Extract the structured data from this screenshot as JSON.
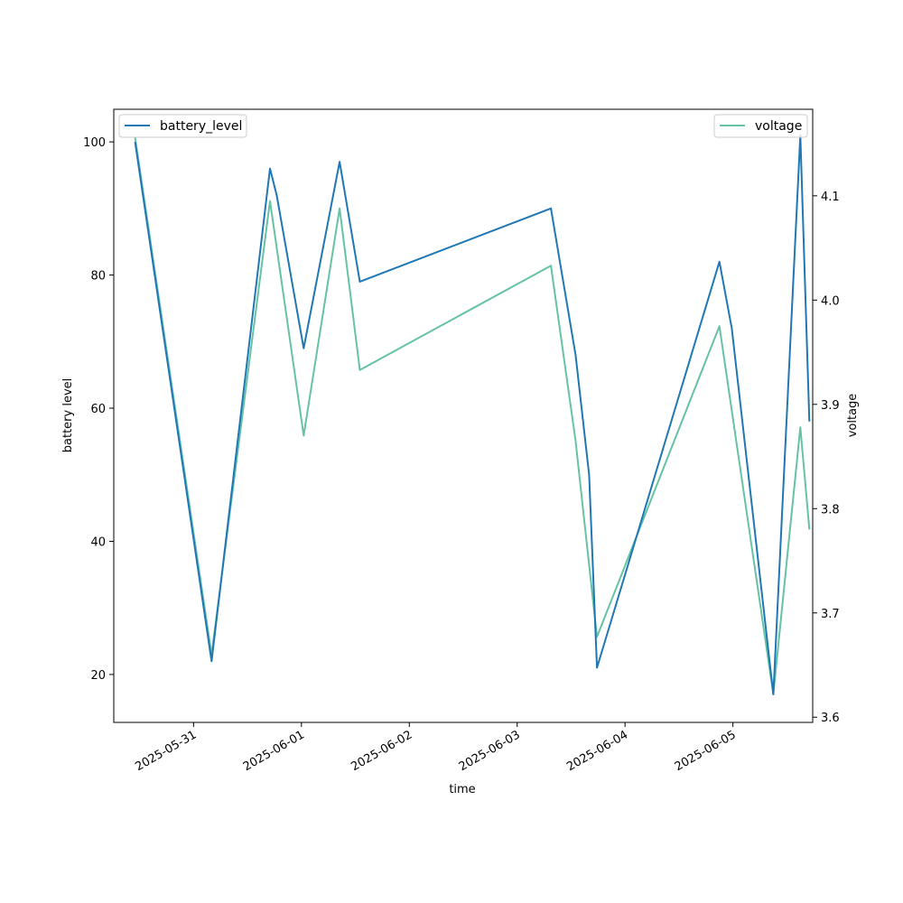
{
  "chart_data": {
    "type": "line",
    "xlabel": "time",
    "ylabel_left": "battery level",
    "ylabel_right": "voltage",
    "x_ticks": [
      "2025-05-31",
      "2025-06-01",
      "2025-06-02",
      "2025-06-03",
      "2025-06-04",
      "2025-06-05"
    ],
    "y_left_ticks": [
      20,
      40,
      60,
      80,
      100
    ],
    "y_right_ticks": [
      3.6,
      3.7,
      3.8,
      3.9,
      4.0,
      4.1
    ],
    "y_left_lim": [
      12.8,
      104.9
    ],
    "y_right_lim": [
      3.595,
      4.183
    ],
    "x_lim": [
      "2025-05-30T06:15",
      "2025-06-05T17:45"
    ],
    "legend": {
      "left": "top-left",
      "right": "top-right"
    },
    "grid": false,
    "series": [
      {
        "name": "battery_level",
        "axis": "left",
        "color": "#1f77b4",
        "points": [
          {
            "x": "2025-05-30T11:00",
            "y": 100
          },
          {
            "x": "2025-05-31T04:00",
            "y": 22
          },
          {
            "x": "2025-05-31T17:00",
            "y": 96
          },
          {
            "x": "2025-05-31T18:30",
            "y": 92
          },
          {
            "x": "2025-06-01T00:30",
            "y": 69
          },
          {
            "x": "2025-06-01T08:30",
            "y": 97
          },
          {
            "x": "2025-06-01T13:00",
            "y": 79
          },
          {
            "x": "2025-06-03T07:30",
            "y": 90
          },
          {
            "x": "2025-06-03T13:00",
            "y": 68
          },
          {
            "x": "2025-06-03T16:00",
            "y": 50
          },
          {
            "x": "2025-06-03T17:45",
            "y": 21
          },
          {
            "x": "2025-06-04T21:00",
            "y": 82
          },
          {
            "x": "2025-06-04T23:45",
            "y": 72
          },
          {
            "x": "2025-06-05T09:00",
            "y": 17
          },
          {
            "x": "2025-06-05T15:00",
            "y": 101
          },
          {
            "x": "2025-06-05T17:00",
            "y": 58
          }
        ]
      },
      {
        "name": "voltage",
        "axis": "right",
        "color": "#66c2a5",
        "points": [
          {
            "x": "2025-05-30T11:00",
            "y": 4.156
          },
          {
            "x": "2025-05-31T04:00",
            "y": 3.66
          },
          {
            "x": "2025-05-31T17:00",
            "y": 4.095
          },
          {
            "x": "2025-06-01T00:30",
            "y": 3.87
          },
          {
            "x": "2025-06-01T08:30",
            "y": 4.088
          },
          {
            "x": "2025-06-01T13:00",
            "y": 3.933
          },
          {
            "x": "2025-06-03T07:30",
            "y": 4.033
          },
          {
            "x": "2025-06-03T13:00",
            "y": 3.865
          },
          {
            "x": "2025-06-03T17:45",
            "y": 3.677
          },
          {
            "x": "2025-06-04T21:00",
            "y": 3.975
          },
          {
            "x": "2025-06-05T09:00",
            "y": 3.622
          },
          {
            "x": "2025-06-05T15:00",
            "y": 3.878
          },
          {
            "x": "2025-06-05T17:00",
            "y": 3.78
          }
        ]
      }
    ]
  }
}
